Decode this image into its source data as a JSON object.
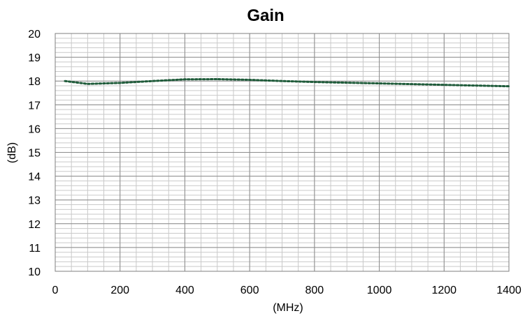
{
  "chart_data": {
    "type": "line",
    "title": "Gain",
    "xlabel": "(MHz)",
    "ylabel": "(dB)",
    "xlim": [
      0,
      1400
    ],
    "ylim": [
      10,
      20
    ],
    "x_ticks": [
      0,
      200,
      400,
      600,
      800,
      1000,
      1200,
      1400
    ],
    "y_ticks": [
      10,
      11,
      12,
      13,
      14,
      15,
      16,
      17,
      18,
      19,
      20
    ],
    "x_tick_labels": [
      "0",
      "200",
      "400",
      "600",
      "800",
      "1000",
      "1200",
      "1400"
    ],
    "y_tick_labels": [
      "10",
      "11",
      "12",
      "13",
      "14",
      "15",
      "16",
      "17",
      "18",
      "19",
      "20"
    ],
    "grid": true,
    "legend": "none",
    "series": [
      {
        "color": "#1f5b3a",
        "style": "dotted",
        "x": [
          30,
          100,
          200,
          300,
          400,
          500,
          600,
          700,
          800,
          900,
          1000,
          1100,
          1200,
          1300,
          1400
        ],
        "values": [
          18.0,
          17.88,
          17.92,
          18.0,
          18.07,
          18.08,
          18.05,
          18.0,
          17.96,
          17.93,
          17.9,
          17.87,
          17.84,
          17.81,
          17.78
        ]
      }
    ]
  }
}
